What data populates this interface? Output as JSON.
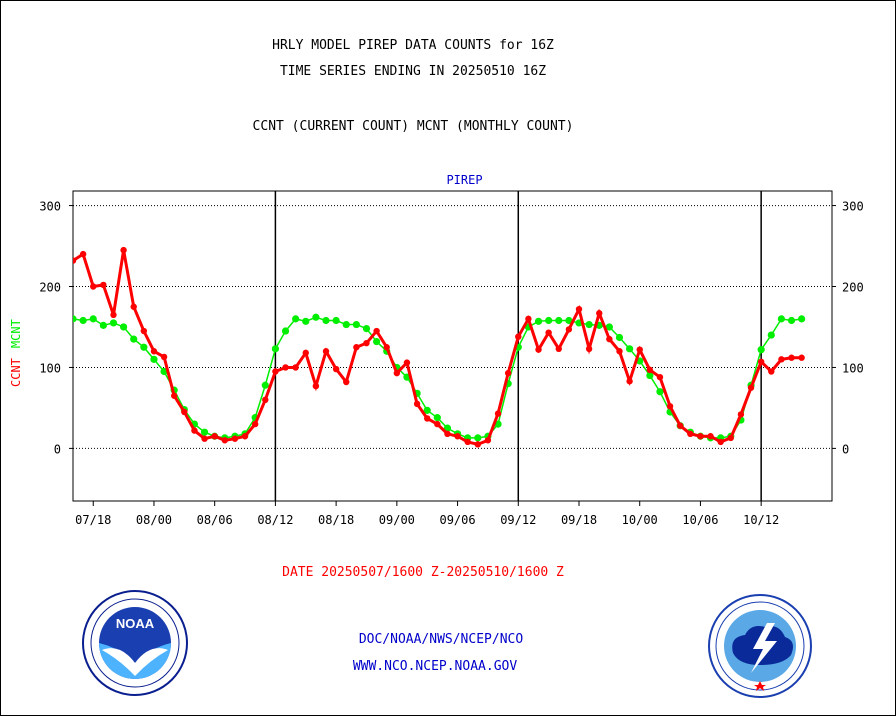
{
  "header": {
    "title_line1": "HRLY MODEL PIREP DATA COUNTS for 16Z",
    "title_line2": "TIME SERIES ENDING IN 20250510 16Z",
    "subtitle": "CCNT (CURRENT COUNT) MCNT (MONTHLY COUNT)"
  },
  "footer": {
    "date_range": "DATE 20250507/1600 Z-20250510/1600 Z",
    "org_line": "DOC/NOAA/NWS/NCEP/NCO",
    "url_line": "WWW.NCO.NCEP.NOAA.GOV"
  },
  "logos": {
    "left": "noaa-logo",
    "right": "nws-logo"
  },
  "colors": {
    "ccnt": "#ff0000",
    "mcnt": "#00ee00",
    "panel_title": "#0000cc",
    "date_text": "#ff0000",
    "footer_text": "#0000cc"
  },
  "chart_data": {
    "type": "line",
    "title": "PIREP",
    "ylabel_series": [
      "CCNT",
      "MCNT"
    ],
    "ylim": [
      -65,
      318
    ],
    "yticks": [
      0,
      100,
      200,
      300
    ],
    "xlim": [
      0,
      75
    ],
    "x_tick_labels": [
      "07/18",
      "08/00",
      "08/06",
      "08/12",
      "08/18",
      "09/00",
      "09/06",
      "09/12",
      "09/18",
      "10/00",
      "10/06",
      "10/12"
    ],
    "x_tick_positions": [
      2,
      8,
      14,
      20,
      26,
      32,
      38,
      44,
      50,
      56,
      62,
      68
    ],
    "day_boundaries": [
      20,
      44,
      68
    ],
    "grid": "horizontal dotted at y ticks",
    "series": [
      {
        "name": "CCNT",
        "values": [
          232,
          240,
          200,
          202,
          165,
          245,
          175,
          145,
          120,
          113,
          65,
          45,
          22,
          12,
          15,
          10,
          12,
          15,
          30,
          60,
          95,
          100,
          100,
          118,
          77,
          120,
          98,
          82,
          125,
          130,
          145,
          125,
          93,
          106,
          55,
          37,
          30,
          18,
          15,
          8,
          5,
          10,
          43,
          93,
          138,
          160,
          122,
          143,
          123,
          147,
          172,
          123,
          167,
          135,
          120,
          83,
          122,
          97,
          88,
          52,
          28,
          18,
          15,
          15,
          8,
          13,
          42,
          75,
          107,
          95,
          110,
          112,
          112
        ]
      },
      {
        "name": "MCNT",
        "values": [
          160,
          158,
          160,
          152,
          155,
          150,
          135,
          125,
          110,
          95,
          72,
          48,
          30,
          20,
          15,
          13,
          15,
          18,
          38,
          78,
          123,
          145,
          160,
          157,
          162,
          158,
          158,
          153,
          153,
          148,
          132,
          120,
          100,
          88,
          68,
          47,
          38,
          25,
          18,
          13,
          13,
          15,
          30,
          80,
          125,
          150,
          157,
          158,
          158,
          158,
          155,
          153,
          152,
          150,
          137,
          123,
          108,
          90,
          70,
          45,
          28,
          20,
          15,
          13,
          13,
          15,
          35,
          78,
          122,
          140,
          160,
          158,
          160
        ]
      }
    ]
  }
}
